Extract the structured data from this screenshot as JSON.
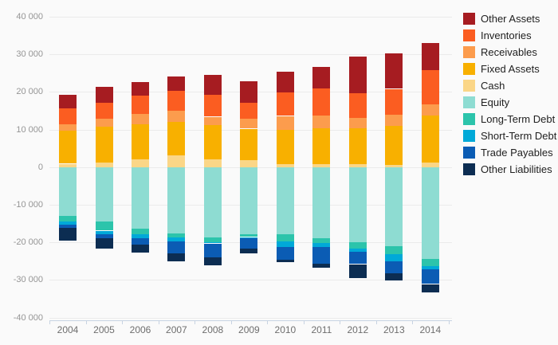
{
  "chart_data": {
    "type": "bar",
    "stacked": true,
    "orientation": "vertical",
    "grid": true,
    "legend_position": "right",
    "categories": [
      "2004",
      "2005",
      "2006",
      "2007",
      "2008",
      "2009",
      "2010",
      "2011",
      "2012",
      "2013",
      "2014"
    ],
    "y_axis": {
      "min": -40000,
      "max": 40000,
      "step": 10000,
      "tick_labels": [
        "40 000",
        "30 000",
        "20 000",
        "10 000",
        "0",
        "-10 000",
        "-20 000",
        "-30 000",
        "-40 000"
      ]
    },
    "series": [
      {
        "name": "Other Assets",
        "color": "#a61c21",
        "values": [
          3600,
          4100,
          3500,
          3900,
          5300,
          5700,
          5400,
          5700,
          9700,
          9500,
          7400
        ]
      },
      {
        "name": "Inventories",
        "color": "#fb5d21",
        "values": [
          4400,
          4300,
          5000,
          5300,
          5800,
          4200,
          6300,
          7300,
          6600,
          6800,
          9100
        ]
      },
      {
        "name": "Receivables",
        "color": "#fc9c4d",
        "values": [
          1700,
          2200,
          2800,
          3000,
          2300,
          2700,
          3700,
          3400,
          2700,
          3000,
          2900
        ]
      },
      {
        "name": "Fixed Assets",
        "color": "#f8b000",
        "values": [
          8700,
          9400,
          9200,
          8900,
          9100,
          8400,
          9000,
          9600,
          9500,
          10500,
          12500
        ]
      },
      {
        "name": "Cash",
        "color": "#fbd687",
        "values": [
          900,
          1300,
          2100,
          3100,
          2000,
          1800,
          900,
          700,
          800,
          500,
          1200
        ]
      },
      {
        "name": "Equity",
        "color": "#8edcd2",
        "values": [
          -12900,
          -14500,
          -16400,
          -17700,
          -18700,
          -17800,
          -17900,
          -18900,
          -19900,
          -21000,
          -24400
        ]
      },
      {
        "name": "Long-Term Debt",
        "color": "#2cc4ab",
        "values": [
          -1600,
          -2400,
          -1500,
          -1000,
          -1300,
          -800,
          -1800,
          -1300,
          -1700,
          -2200,
          -1900
        ]
      },
      {
        "name": "Short-Term Debt",
        "color": "#00a9d8",
        "values": [
          -900,
          -1000,
          -1100,
          -1100,
          -300,
          -300,
          -1500,
          -1000,
          -1000,
          -1800,
          -900
        ]
      },
      {
        "name": "Trade Payables",
        "color": "#0b5cb4",
        "values": [
          -800,
          -1100,
          -1700,
          -3200,
          -3700,
          -2700,
          -3400,
          -4400,
          -3200,
          -3300,
          -3900
        ]
      },
      {
        "name": "Other Liabilities",
        "color": "#0c2d52",
        "values": [
          -3400,
          -2700,
          -2000,
          -2100,
          -2100,
          -1400,
          -700,
          -1100,
          -3600,
          -1800,
          -2200
        ]
      }
    ]
  },
  "layout_colors": {
    "background": "#fafafa",
    "gridline": "#ebebeb",
    "axis_line": "#c7d3e2",
    "y_label_text": "#959595",
    "x_label_text": "#6e6e6e",
    "legend_text": "#1f1f1f"
  }
}
